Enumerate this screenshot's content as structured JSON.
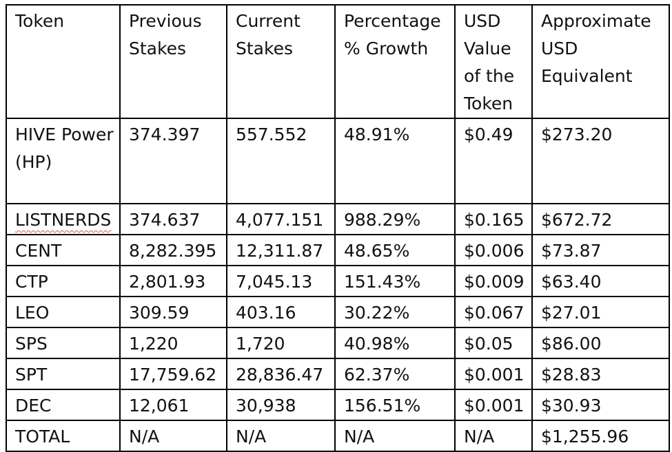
{
  "table": {
    "headers": [
      "Token",
      "Previous Stakes",
      "Current Stakes",
      "Percentage % Growth",
      "USD Value of the Token",
      "Approximate USD Equivalent"
    ],
    "rows": [
      [
        "HIVE Power (HP)",
        "374.397",
        "557.552",
        "48.91%",
        "$0.49",
        "$273.20"
      ],
      [
        "LISTNERDS",
        "374.637",
        "4,077.151",
        "988.29%",
        "$0.165",
        "$672.72"
      ],
      [
        "CENT",
        "8,282.395",
        "12,311.87",
        "48.65%",
        "$0.006",
        "$73.87"
      ],
      [
        "CTP",
        "2,801.93",
        "7,045.13",
        "151.43%",
        "$0.009",
        "$63.40"
      ],
      [
        "LEO",
        "309.59",
        "403.16",
        "30.22%",
        "$0.067",
        "$27.01"
      ],
      [
        "SPS",
        "1,220",
        "1,720",
        "40.98%",
        "$0.05",
        "$86.00"
      ],
      [
        "SPT",
        "17,759.62",
        "28,836.47",
        "62.37%",
        "$0.001",
        "$28.83"
      ],
      [
        "DEC",
        "12,061",
        "30,938",
        "156.51%",
        "$0.001",
        "$30.93"
      ],
      [
        "TOTAL",
        "N/A",
        "N/A",
        "N/A",
        "N/A",
        "$1,255.96"
      ]
    ]
  }
}
